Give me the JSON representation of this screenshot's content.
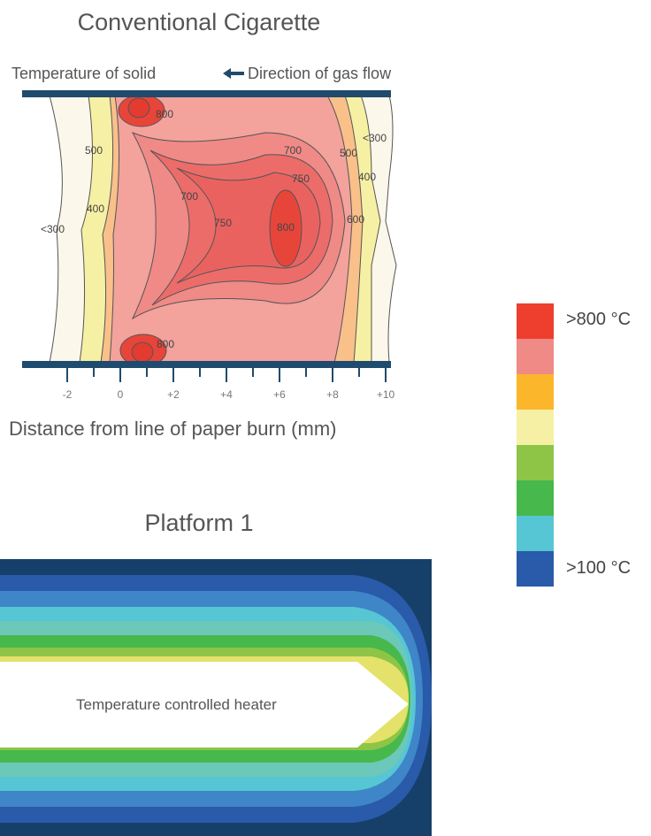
{
  "top_panel": {
    "title": "Conventional Cigarette",
    "solid_label": "Temperature of solid",
    "gas_label": "Direction of gas flow",
    "x_axis_label": "Distance from line of paper burn (mm)",
    "x_ticks": [
      "-2",
      "0",
      "+2",
      "+4",
      "+6",
      "+8",
      "+10"
    ],
    "contour_labels": [
      "800",
      "500",
      "400",
      "<300",
      "700",
      "750",
      "800",
      "700",
      "750",
      "500",
      "<300",
      "400",
      "600",
      "800"
    ]
  },
  "bottom_panel": {
    "title": "Platform 1",
    "heater_label": "Temperature controlled heater"
  },
  "legend": {
    "high_label": ">800 °C",
    "low_label": ">100 °C",
    "colors": [
      "#ee3e2e",
      "#f08a86",
      "#fbb62c",
      "#f6f0a4",
      "#8ec547",
      "#47b84c",
      "#56c6d4",
      "#2a5aaa"
    ]
  }
}
